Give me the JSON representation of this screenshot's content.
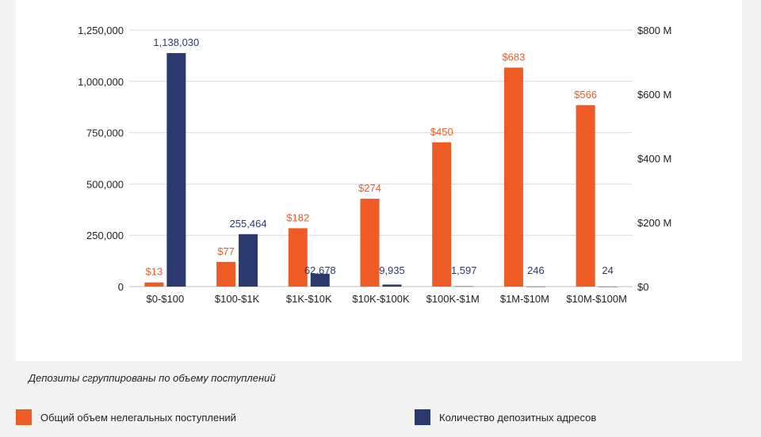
{
  "colors": {
    "revenue": "#ef5b25",
    "count": "#2b3a6e",
    "grid": "#d9d9d9",
    "text": "#222222"
  },
  "caption": "Депозиты сгруппированы по объему поступлений",
  "legend": [
    {
      "label": "Общий объем нелегальных поступлений",
      "color": "#ef5b25"
    },
    {
      "label": "Количество депозитных адресов",
      "color": "#2b3a6e"
    }
  ],
  "chart_data": {
    "type": "bar",
    "categories": [
      "$0-$100",
      "$100-$1K",
      "$1K-$10K",
      "$10K-$100K",
      "$100K-$1M",
      "$1M-$10M",
      "$10M-$100M"
    ],
    "series": [
      {
        "name": "Общий объем нелегальных поступлений",
        "axis": "right",
        "color": "#ef5b25",
        "values": [
          13,
          77,
          182,
          274,
          450,
          683,
          566
        ],
        "data_labels": [
          "$13",
          "$77",
          "$182",
          "$274",
          "$450",
          "$683",
          "$566"
        ]
      },
      {
        "name": "Количество депозитных адресов",
        "axis": "left",
        "color": "#2b3a6e",
        "values": [
          1138030,
          255464,
          62678,
          9935,
          1597,
          246,
          24
        ],
        "data_labels": [
          "1,138,030",
          "255,464",
          "62,678",
          "9,935",
          "1,597",
          "246",
          "24"
        ]
      }
    ],
    "y_left": {
      "ylim": [
        0,
        1250000
      ],
      "ticks": [
        0,
        250000,
        500000,
        750000,
        1000000,
        1250000
      ],
      "tick_labels": [
        "0",
        "250,000",
        "500,000",
        "750,000",
        "1,000,000",
        "1,250,000"
      ]
    },
    "y_right": {
      "ylim": [
        0,
        800
      ],
      "ticks": [
        0,
        200,
        400,
        600,
        800
      ],
      "tick_labels": [
        "$0",
        "$200 M",
        "$400 M",
        "$600 M",
        "$800 M"
      ]
    },
    "grid": true
  }
}
